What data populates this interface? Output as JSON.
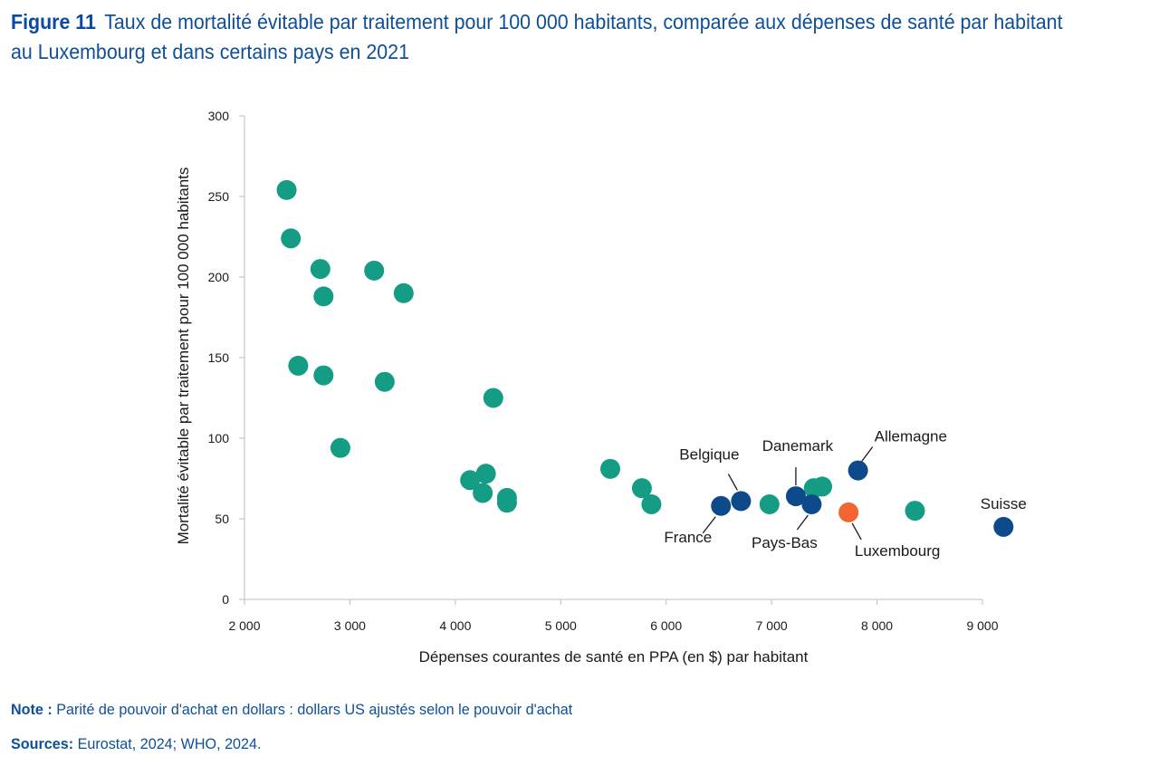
{
  "figure": {
    "label": "Figure 11",
    "title": "Taux de mortalité évitable par traitement pour 100 000 habitants, comparée aux dépenses de santé par habitant au Luxembourg et dans certains pays en 2021"
  },
  "notes": {
    "note_label": "Note :",
    "note_text": "Parité de pouvoir d'achat en dollars : dollars US ajustés selon le pouvoir d'achat",
    "sources_label": "Sources:",
    "sources_text": "Eurostat, 2024; WHO, 2024."
  },
  "colors": {
    "other": "#149c84",
    "highlight": "#0d4a8c",
    "luxembourg": "#f26430",
    "axis": "#bfbfbf"
  },
  "chart_data": {
    "type": "scatter",
    "xlabel": "Dépenses courantes de santé en PPA (en $) par habitant",
    "ylabel": "Mortalité évitable par traitement pour 100 000 habitants",
    "xlim": [
      2000,
      9000
    ],
    "ylim": [
      0,
      300
    ],
    "xticks": [
      2000,
      3000,
      4000,
      5000,
      6000,
      7000,
      8000,
      9000
    ],
    "xtick_labels": [
      "2 000",
      "3 000",
      "4 000",
      "5 000",
      "6 000",
      "7 000",
      "8 000",
      "9 000"
    ],
    "yticks": [
      0,
      50,
      100,
      150,
      200,
      250,
      300
    ],
    "ytick_labels": [
      "0",
      "50",
      "100",
      "150",
      "200",
      "250",
      "300"
    ],
    "grid": false,
    "points": [
      {
        "x": 2400,
        "y": 254,
        "group": "other"
      },
      {
        "x": 2440,
        "y": 224,
        "group": "other"
      },
      {
        "x": 2720,
        "y": 205,
        "group": "other"
      },
      {
        "x": 2750,
        "y": 188,
        "group": "other"
      },
      {
        "x": 3230,
        "y": 204,
        "group": "other"
      },
      {
        "x": 3510,
        "y": 190,
        "group": "other"
      },
      {
        "x": 2510,
        "y": 145,
        "group": "other"
      },
      {
        "x": 2750,
        "y": 139,
        "group": "other"
      },
      {
        "x": 3330,
        "y": 135,
        "group": "other"
      },
      {
        "x": 2910,
        "y": 94,
        "group": "other"
      },
      {
        "x": 4360,
        "y": 125,
        "group": "other"
      },
      {
        "x": 4140,
        "y": 74,
        "group": "other"
      },
      {
        "x": 4290,
        "y": 78,
        "group": "other"
      },
      {
        "x": 4260,
        "y": 66,
        "group": "other"
      },
      {
        "x": 4490,
        "y": 63,
        "group": "other"
      },
      {
        "x": 4490,
        "y": 60,
        "group": "other"
      },
      {
        "x": 5470,
        "y": 81,
        "group": "other"
      },
      {
        "x": 5770,
        "y": 69,
        "group": "other"
      },
      {
        "x": 5860,
        "y": 59,
        "group": "other"
      },
      {
        "x": 6980,
        "y": 59,
        "group": "other"
      },
      {
        "x": 7400,
        "y": 69,
        "group": "other"
      },
      {
        "x": 7480,
        "y": 70,
        "group": "other"
      },
      {
        "x": 8360,
        "y": 55,
        "group": "other"
      },
      {
        "x": 6520,
        "y": 58,
        "group": "highlight",
        "label": "France"
      },
      {
        "x": 6710,
        "y": 61,
        "group": "highlight",
        "label": "Belgique"
      },
      {
        "x": 7230,
        "y": 64,
        "group": "highlight",
        "label": "Danemark"
      },
      {
        "x": 7380,
        "y": 59,
        "group": "highlight",
        "label": "Pays-Bas"
      },
      {
        "x": 7820,
        "y": 80,
        "group": "highlight",
        "label": "Allemagne"
      },
      {
        "x": 9200,
        "y": 45,
        "group": "highlight",
        "label": "Suisse"
      },
      {
        "x": 7730,
        "y": 54,
        "group": "luxembourg",
        "label": "Luxembourg"
      }
    ]
  }
}
